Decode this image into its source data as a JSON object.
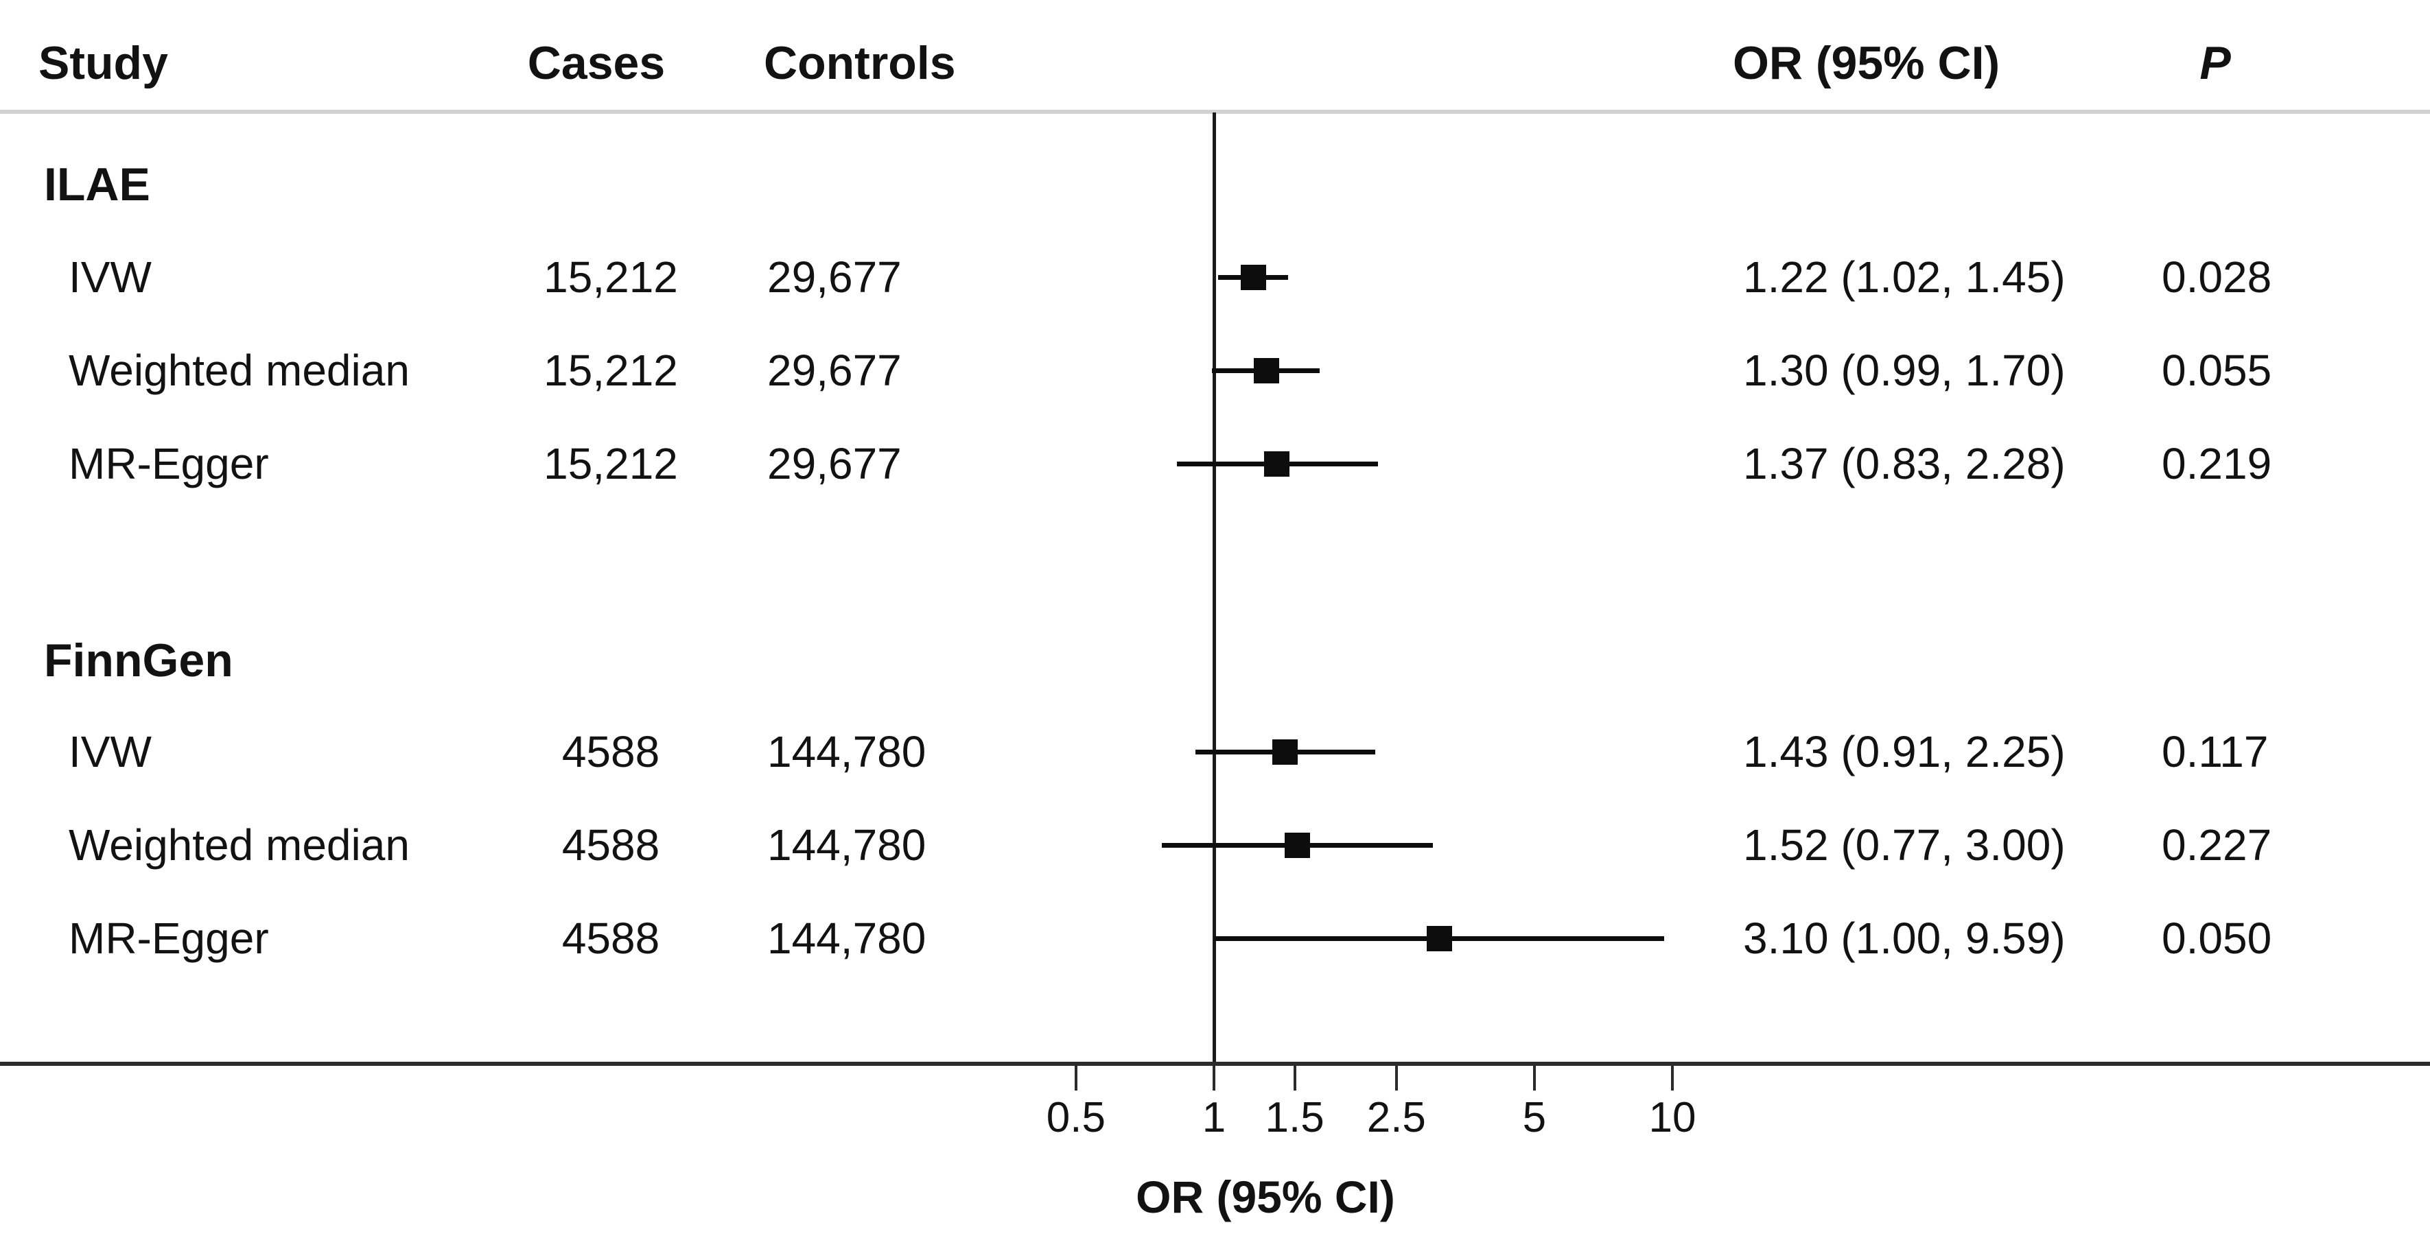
{
  "columns": {
    "study": "Study",
    "cases": "Cases",
    "controls": "Controls",
    "or_ci": "OR (95% CI)",
    "p": "P"
  },
  "axis": {
    "label": "OR (95% CI)",
    "scale": "log10",
    "reference_value": 1,
    "ticks": [
      {
        "value": 0.5,
        "label": "0.5"
      },
      {
        "value": 1,
        "label": "1"
      },
      {
        "value": 1.5,
        "label": "1.5"
      },
      {
        "value": 2.5,
        "label": "2.5"
      },
      {
        "value": 5,
        "label": "5"
      },
      {
        "value": 10,
        "label": "10"
      }
    ]
  },
  "groups": [
    {
      "name": "ILAE",
      "rows": [
        {
          "method": "IVW",
          "cases": "15,212",
          "controls": "29,677",
          "or": 1.22,
          "ci_low": 1.02,
          "ci_high": 1.45,
          "or_ci_text": "1.22 (1.02, 1.45)",
          "p": "0.028"
        },
        {
          "method": "Weighted median",
          "cases": "15,212",
          "controls": "29,677",
          "or": 1.3,
          "ci_low": 0.99,
          "ci_high": 1.7,
          "or_ci_text": "1.30 (0.99, 1.70)",
          "p": "0.055"
        },
        {
          "method": "MR-Egger",
          "cases": "15,212",
          "controls": "29,677",
          "or": 1.37,
          "ci_low": 0.83,
          "ci_high": 2.28,
          "or_ci_text": "1.37 (0.83, 2.28)",
          "p": "0.219"
        }
      ]
    },
    {
      "name": "FinnGen",
      "rows": [
        {
          "method": "IVW",
          "cases": "4588",
          "controls": "144,780",
          "or": 1.43,
          "ci_low": 0.91,
          "ci_high": 2.25,
          "or_ci_text": "1.43 (0.91, 2.25)",
          "p": "0.117"
        },
        {
          "method": "Weighted median",
          "cases": "4588",
          "controls": "144,780",
          "or": 1.52,
          "ci_low": 0.77,
          "ci_high": 3.0,
          "or_ci_text": "1.52 (0.77, 3.00)",
          "p": "0.227"
        },
        {
          "method": "MR-Egger",
          "cases": "4588",
          "controls": "144,780",
          "or": 3.1,
          "ci_low": 1.0,
          "ci_high": 9.59,
          "or_ci_text": "3.10 (1.00, 9.59)",
          "p": "0.050"
        }
      ]
    }
  ],
  "colors": {
    "text": "#121212",
    "marker": "#0d0d0d",
    "ci_line": "#0d0d0d",
    "axis_line": "#2b2b2b",
    "header_rule": "#d2d2d2",
    "background": "#ffffff"
  },
  "chart_data": {
    "type": "scatter",
    "subtype": "forest_plot",
    "title": "",
    "xlabel": "OR (95% CI)",
    "x_scale": "log",
    "x_ticks": [
      0.5,
      1,
      1.5,
      2.5,
      5,
      10
    ],
    "x_range": [
      0.4,
      12
    ],
    "reference_line_x": 1,
    "grid": false,
    "legend_position": "none",
    "series": [
      {
        "name": "ILAE",
        "points": [
          {
            "label": "IVW",
            "or": 1.22,
            "ci": [
              1.02,
              1.45
            ],
            "p": 0.028,
            "cases": 15212,
            "controls": 29677
          },
          {
            "label": "Weighted median",
            "or": 1.3,
            "ci": [
              0.99,
              1.7
            ],
            "p": 0.055,
            "cases": 15212,
            "controls": 29677
          },
          {
            "label": "MR-Egger",
            "or": 1.37,
            "ci": [
              0.83,
              2.28
            ],
            "p": 0.219,
            "cases": 15212,
            "controls": 29677
          }
        ]
      },
      {
        "name": "FinnGen",
        "points": [
          {
            "label": "IVW",
            "or": 1.43,
            "ci": [
              0.91,
              2.25
            ],
            "p": 0.117,
            "cases": 4588,
            "controls": 144780
          },
          {
            "label": "Weighted median",
            "or": 1.52,
            "ci": [
              0.77,
              3.0
            ],
            "p": 0.227,
            "cases": 4588,
            "controls": 144780
          },
          {
            "label": "MR-Egger",
            "or": 3.1,
            "ci": [
              1.0,
              9.59
            ],
            "p": 0.05,
            "cases": 4588,
            "controls": 144780
          }
        ]
      }
    ]
  }
}
